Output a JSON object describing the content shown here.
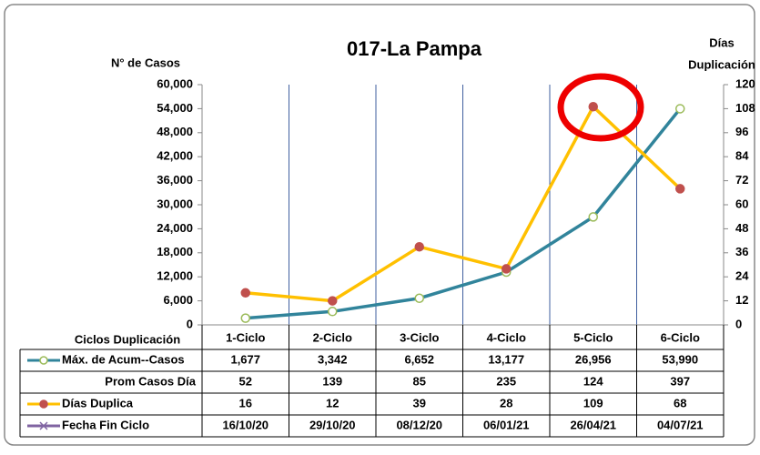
{
  "chart_data": {
    "type": "line",
    "title": "017-La Pampa",
    "y_label": "N° de Casos",
    "y2_label": [
      "Días",
      "Duplicación"
    ],
    "table_header": "Ciclos Duplicación",
    "categories": [
      "1-Ciclo",
      "2-Ciclo",
      "3-Ciclo",
      "4-Ciclo",
      "5-Ciclo",
      "6-Ciclo"
    ],
    "ylim": [
      0,
      60000
    ],
    "yticks": [
      0,
      {
        "value": 6000,
        "label": "6,000"
      },
      {
        "value": 12000,
        "label": "12,000"
      },
      {
        "value": 18000,
        "label": "18,000"
      },
      {
        "value": 24000,
        "label": "24,000"
      },
      {
        "value": 30000,
        "label": "30,000"
      },
      {
        "value": 36000,
        "label": "36,000"
      },
      {
        "value": 42000,
        "label": "42,000"
      },
      {
        "value": 48000,
        "label": "48,000"
      },
      {
        "value": 54000,
        "label": "54,000"
      },
      {
        "value": 60000,
        "label": "60,000"
      }
    ],
    "y2lim": [
      0,
      120
    ],
    "y2ticks": [
      0,
      12,
      24,
      36,
      48,
      60,
      72,
      84,
      96,
      108,
      120
    ],
    "grid": "vertical",
    "series": [
      {
        "name": "Máx. de Acum--Casos",
        "color": "#31849b",
        "marker_color": "#9bbb59",
        "axis": "y",
        "values": [
          1677,
          3342,
          6652,
          13177,
          26956,
          53990
        ],
        "value_labels": [
          "1,677",
          "3,342",
          "6,652",
          "13,177",
          "26,956",
          "53,990"
        ]
      },
      {
        "name": "Prom Casos Día",
        "values": [
          52,
          139,
          85,
          235,
          124,
          397
        ]
      },
      {
        "name": "Días Duplica",
        "color": "#ffc000",
        "marker_color": "#c0504d",
        "axis": "y2",
        "values": [
          16,
          12,
          39,
          28,
          109,
          68
        ]
      },
      {
        "name": "Fecha Fin Ciclo",
        "color": "#8064a2",
        "values": [
          "16/10/20",
          "29/10/20",
          "08/12/20",
          "06/01/21",
          "26/04/21",
          "04/07/21"
        ]
      }
    ]
  }
}
